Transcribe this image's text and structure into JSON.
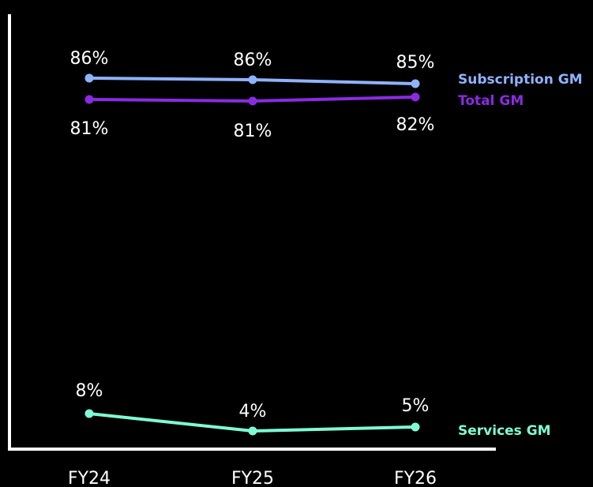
{
  "chart_data": {
    "type": "line",
    "title": "",
    "xlabel": "",
    "ylabel": "",
    "categories": [
      "FY24",
      "FY25",
      "FY26"
    ],
    "grid": false,
    "legend_placement": "right",
    "series": [
      {
        "key": "subscription",
        "name": "Subscription GM",
        "values": [
          86,
          86,
          85
        ],
        "labels": [
          "86%",
          "86%",
          "85%"
        ],
        "label_position": "above",
        "color": "#8fb3ff"
      },
      {
        "key": "total",
        "name": "Total GM",
        "values": [
          81,
          81,
          82
        ],
        "labels": [
          "81%",
          "81%",
          "82%"
        ],
        "label_position": "below",
        "color": "#8a2be2"
      },
      {
        "key": "services",
        "name": "Services GM",
        "values": [
          8,
          4,
          5
        ],
        "labels": [
          "8%",
          "4%",
          "5%"
        ],
        "label_position": "above",
        "color": "#7fffd4"
      }
    ]
  }
}
